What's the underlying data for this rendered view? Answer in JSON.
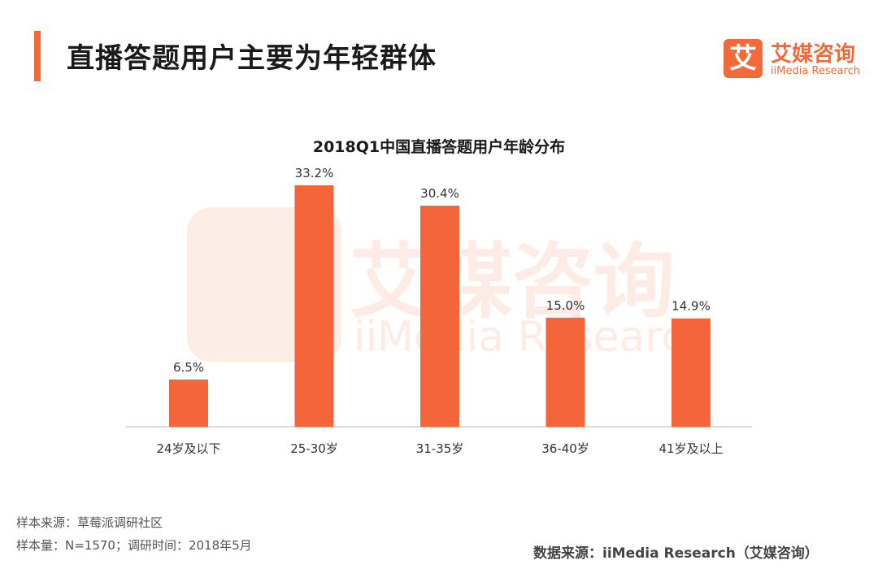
{
  "header": {
    "title": "直播答题用户主要为年轻群体"
  },
  "logo": {
    "icon_char": "艾",
    "name_cn": "艾媒咨询",
    "name_en": "iiMedia Research"
  },
  "watermark": {
    "icon_char": "艾",
    "name_cn": "艾媒咨询",
    "name_en": "iiMedia Research"
  },
  "chart_data": {
    "type": "bar",
    "title": "2018Q1中国直播答题用户年龄分布",
    "categories": [
      "24岁及以下",
      "25-30岁",
      "31-35岁",
      "36-40岁",
      "41岁及以上"
    ],
    "values": [
      6.5,
      33.2,
      30.4,
      15.0,
      14.9
    ],
    "labels": [
      "6.5%",
      "33.2%",
      "30.4%",
      "15.0%",
      "14.9%"
    ],
    "unit": "%",
    "xlabel": "",
    "ylabel": "",
    "ylim": [
      0,
      35
    ],
    "grid": false,
    "legend": "none",
    "bar_color": "#f4663a"
  },
  "footer": {
    "sample_source": "样本来源：草莓派调研社区",
    "sample_size": "样本量：N=1570；调研时间：2018年5月",
    "data_source": "数据来源：iiMedia Research（艾媒咨询）"
  },
  "colors": {
    "accent": "#f26a3a"
  }
}
